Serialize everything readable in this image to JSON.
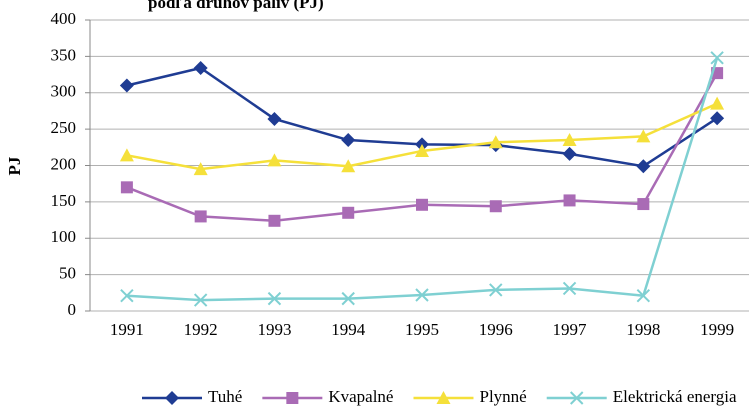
{
  "chart_data": {
    "type": "line",
    "title": "podľa druhov palív (PJ)",
    "y_label": "PJ",
    "categories": [
      "1991",
      "1992",
      "1993",
      "1994",
      "1995",
      "1996",
      "1997",
      "1998",
      "1999"
    ],
    "series": [
      {
        "name": "Tuhé",
        "color": "#1f3c93",
        "marker": "diamond",
        "values": [
          310,
          334,
          264,
          235,
          229,
          228,
          216,
          199,
          265
        ]
      },
      {
        "name": "Kvapalné",
        "color": "#a96bb5",
        "marker": "square",
        "values": [
          170,
          130,
          124,
          135,
          146,
          144,
          152,
          147,
          327
        ]
      },
      {
        "name": "Plynné",
        "color": "#f5e03a",
        "marker": "triangle",
        "values": [
          214,
          195,
          207,
          199,
          220,
          232,
          235,
          240,
          285
        ]
      },
      {
        "name": "Elektrická energia",
        "color": "#7fd0d2",
        "marker": "x",
        "values": [
          21,
          15,
          17,
          17,
          22,
          29,
          31,
          21,
          348
        ]
      }
    ],
    "ylim": [
      0,
      400
    ],
    "yticks": [
      0,
      50,
      100,
      150,
      200,
      250,
      300,
      350,
      400
    ],
    "grid": true,
    "legend": "bottom"
  }
}
